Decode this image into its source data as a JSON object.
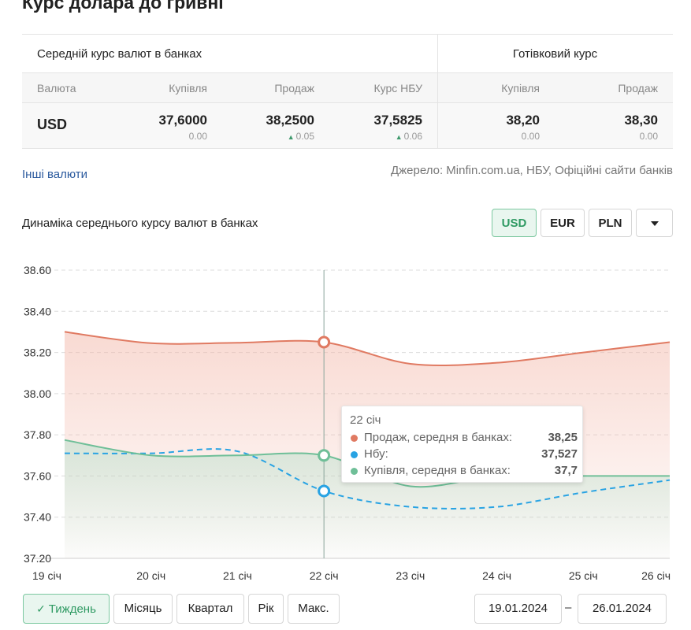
{
  "page_title": "Курс долара до гривні",
  "table": {
    "bank_header": "Середній курс валют в банках",
    "cash_header": "Готівковий курс",
    "columns": [
      "Валюта",
      "Купівля",
      "Продаж",
      "Курс НБУ",
      "Купівля",
      "Продаж"
    ],
    "row": {
      "currency": "USD",
      "bank_buy": "37,6000",
      "bank_buy_delta": "0.00",
      "bank_sell": "38,2500",
      "bank_sell_delta": "0.05",
      "nbu": "37,5825",
      "nbu_delta": "0.06",
      "cash_buy": "38,20",
      "cash_buy_delta": "0.00",
      "cash_sell": "38,30",
      "cash_sell_delta": "0.00"
    }
  },
  "other_currencies_link": "Інші валюти",
  "source_text": "Джерело: Minfin.com.ua, НБУ, Офіційні сайти банків",
  "dynamics_title": "Динаміка середнього курсу валют в банках",
  "currency_buttons": [
    "USD",
    "EUR",
    "PLN"
  ],
  "active_currency": "USD",
  "colors": {
    "sell": "#e07a62",
    "nbu": "#29a3e3",
    "buy": "#6fbf98",
    "accent": "#2f9a63"
  },
  "chart_data": {
    "type": "line",
    "x": [
      "19 січ",
      "20 січ",
      "21 січ",
      "22 січ",
      "23 січ",
      "24 січ",
      "25 січ",
      "26 січ"
    ],
    "ylim": [
      37.2,
      38.6
    ],
    "yticks": [
      "38.60",
      "38.40",
      "38.20",
      "38.00",
      "37.80",
      "37.60",
      "37.40",
      "37.20"
    ],
    "grid": true,
    "series": [
      {
        "key": "sell",
        "values": [
          38.3,
          38.245,
          38.247,
          38.25,
          38.145,
          38.15,
          38.2,
          38.25
        ]
      },
      {
        "key": "nbu",
        "values": [
          37.71,
          37.71,
          37.72,
          37.527,
          37.45,
          37.45,
          37.52,
          37.58
        ]
      },
      {
        "key": "buy",
        "values": [
          37.775,
          37.7,
          37.7,
          37.7,
          37.55,
          37.6,
          37.6,
          37.6
        ]
      }
    ],
    "crosshair_index": 3,
    "tooltip": {
      "date": "22 січ",
      "rows": [
        {
          "key": "sell",
          "name": "Продаж, середня в банках:",
          "value": "38,25"
        },
        {
          "key": "nbu",
          "name": "Нбу:",
          "value": "37,527"
        },
        {
          "key": "buy",
          "name": "Купівля, середня в банках:",
          "value": "37,7"
        }
      ]
    }
  },
  "periods": [
    "Тиждень",
    "Місяць",
    "Квартал",
    "Рік",
    "Макс."
  ],
  "active_period": "Тиждень",
  "date_from": "19.01.2024",
  "date_to": "26.01.2024",
  "date_separator": "–"
}
